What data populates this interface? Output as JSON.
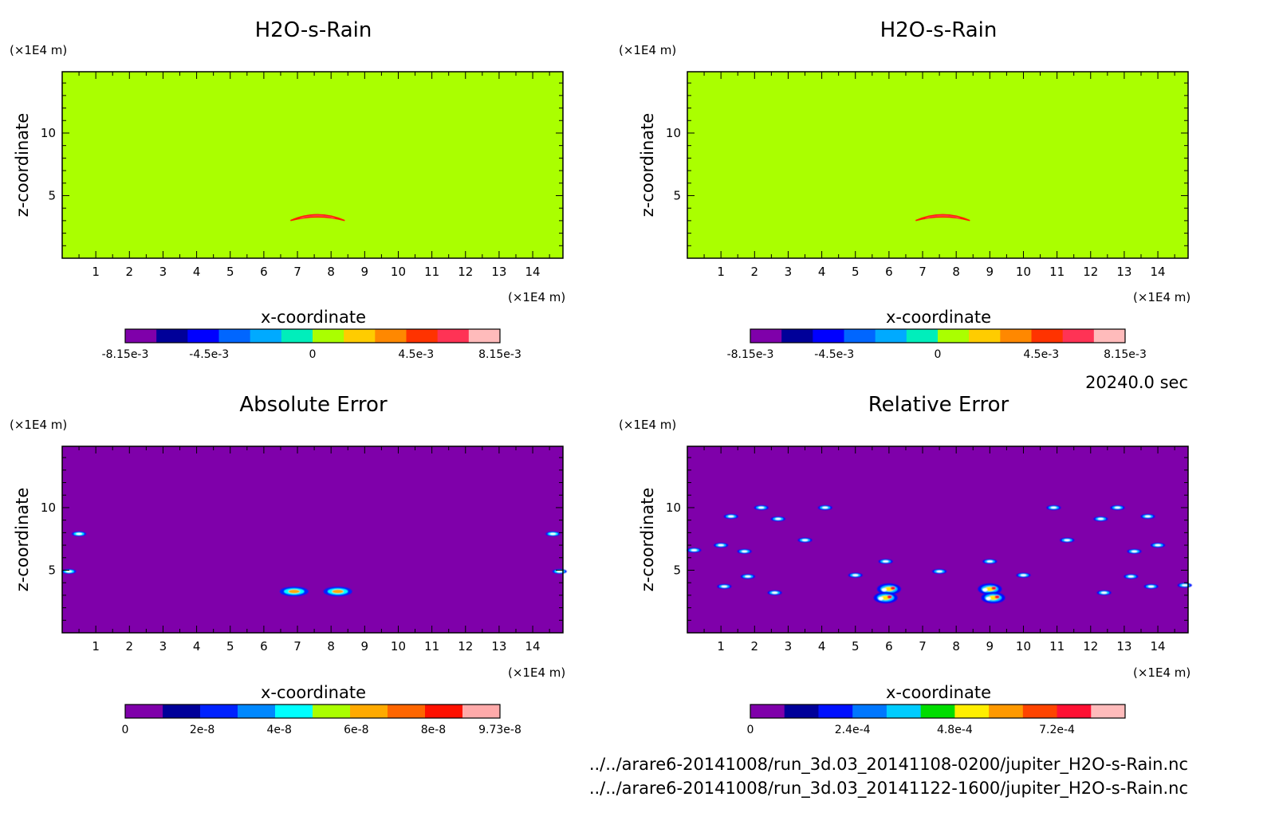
{
  "figure": {
    "time_label": "20240.0 sec",
    "file_paths": [
      "../../arare6-20141008/run_3d.03_20141108-0200/jupiter_H2O-s-Rain.nc",
      "../../arare6-20141008/run_3d.03_20141122-1600/jupiter_H2O-s-Rain.nc"
    ]
  },
  "colors": {
    "background_field": "#aaff00",
    "error_background": "#7f00aa",
    "levels_diverging": [
      "#7f00aa",
      "#000099",
      "#0000ff",
      "#0066ff",
      "#00aaff",
      "#00eebb",
      "#aaff00",
      "#ffcc00",
      "#ff8800",
      "#ff3300",
      "#ff3355",
      "#ffbbbb"
    ],
    "levels_sequential": [
      "#7f00aa",
      "#000099",
      "#0022ff",
      "#0088ff",
      "#00ffff",
      "#aaff00",
      "#ffaa00",
      "#ff6600",
      "#ff1100",
      "#ffaaaa"
    ],
    "levels_relative": [
      "#7f00aa",
      "#000099",
      "#0011ff",
      "#0077ff",
      "#00ccff",
      "#00dd00",
      "#ffee00",
      "#ff9900",
      "#ff4400",
      "#ff1133",
      "#ffbbbb"
    ]
  },
  "chart_data": [
    {
      "type": "heatmap",
      "title": "H2O-s-Rain",
      "xlabel": "x-coordinate",
      "ylabel": "z-coordinate",
      "x_unit": "(×1E4 m)",
      "y_unit": "(×1E4 m)",
      "xlim": [
        0,
        14.9
      ],
      "ylim": [
        0,
        14.9
      ],
      "x_ticks": [
        "1",
        "2",
        "3",
        "4",
        "5",
        "6",
        "7",
        "8",
        "9",
        "10",
        "11",
        "12",
        "13",
        "14"
      ],
      "y_ticks": [
        "5",
        "10"
      ],
      "colorbar_ticks": [
        "-8.15e-3",
        "-4.5e-3",
        "0",
        "4.5e-3",
        "8.15e-3"
      ],
      "colorbar_tick_values": [
        -0.00815,
        -0.0045,
        0,
        0.0045,
        0.00815
      ],
      "colorbar_range": [
        -0.00815,
        0.00815
      ],
      "background_value": 0,
      "features": [
        {
          "x": 7.6,
          "z": 3.2,
          "description": "thin positive arc"
        }
      ]
    },
    {
      "type": "heatmap",
      "title": "H2O-s-Rain",
      "xlabel": "x-coordinate",
      "ylabel": "z-coordinate",
      "x_unit": "(×1E4 m)",
      "y_unit": "(×1E4 m)",
      "xlim": [
        0,
        14.9
      ],
      "ylim": [
        0,
        14.9
      ],
      "x_ticks": [
        "1",
        "2",
        "3",
        "4",
        "5",
        "6",
        "7",
        "8",
        "9",
        "10",
        "11",
        "12",
        "13",
        "14"
      ],
      "y_ticks": [
        "5",
        "10"
      ],
      "colorbar_ticks": [
        "-8.15e-3",
        "-4.5e-3",
        "0",
        "4.5e-3",
        "8.15e-3"
      ],
      "colorbar_tick_values": [
        -0.00815,
        -0.0045,
        0,
        0.0045,
        0.00815
      ],
      "colorbar_range": [
        -0.00815,
        0.00815
      ],
      "background_value": 0,
      "features": [
        {
          "x": 7.6,
          "z": 3.2,
          "description": "thin positive arc"
        }
      ]
    },
    {
      "type": "heatmap",
      "title": "Absolute Error",
      "xlabel": "x-coordinate",
      "ylabel": "z-coordinate",
      "x_unit": "(×1E4 m)",
      "y_unit": "(×1E4 m)",
      "xlim": [
        0,
        14.9
      ],
      "ylim": [
        0,
        14.9
      ],
      "x_ticks": [
        "1",
        "2",
        "3",
        "4",
        "5",
        "6",
        "7",
        "8",
        "9",
        "10",
        "11",
        "12",
        "13",
        "14"
      ],
      "y_ticks": [
        "5",
        "10"
      ],
      "colorbar_ticks": [
        "0",
        "2e-8",
        "4e-8",
        "6e-8",
        "8e-8",
        "9.73e-8"
      ],
      "colorbar_tick_values": [
        0,
        2e-08,
        4e-08,
        6e-08,
        8e-08,
        9.73e-08
      ],
      "colorbar_range": [
        0,
        9.73e-08
      ],
      "blobs": [
        {
          "x": 6.9,
          "z": 3.3
        },
        {
          "x": 8.2,
          "z": 3.3
        },
        {
          "x": 0.2,
          "z": 4.9
        },
        {
          "x": 14.8,
          "z": 4.9
        },
        {
          "x": 0.5,
          "z": 7.9
        },
        {
          "x": 14.6,
          "z": 7.9
        }
      ]
    },
    {
      "type": "heatmap",
      "title": "Relative Error",
      "xlabel": "x-coordinate",
      "ylabel": "z-coordinate",
      "x_unit": "(×1E4 m)",
      "y_unit": "(×1E4 m)",
      "xlim": [
        0,
        14.9
      ],
      "ylim": [
        0,
        14.9
      ],
      "x_ticks": [
        "1",
        "2",
        "3",
        "4",
        "5",
        "6",
        "7",
        "8",
        "9",
        "10",
        "11",
        "12",
        "13",
        "14"
      ],
      "y_ticks": [
        "5",
        "10"
      ],
      "colorbar_ticks": [
        "0",
        "2.4e-4",
        "4.8e-4",
        "7.2e-4"
      ],
      "colorbar_tick_values": [
        0,
        0.00024,
        0.00048,
        0.00072
      ],
      "colorbar_range": [
        0,
        0.00088
      ],
      "blobs": [
        {
          "x": 6.0,
          "z": 3.5
        },
        {
          "x": 9.0,
          "z": 3.5
        },
        {
          "x": 5.9,
          "z": 2.8
        },
        {
          "x": 9.1,
          "z": 2.8
        },
        {
          "x": 5.0,
          "z": 4.6
        },
        {
          "x": 10.0,
          "z": 4.6
        },
        {
          "x": 5.9,
          "z": 5.7
        },
        {
          "x": 9.0,
          "z": 5.7
        },
        {
          "x": 1.8,
          "z": 4.5
        },
        {
          "x": 13.2,
          "z": 4.5
        },
        {
          "x": 1.1,
          "z": 3.7
        },
        {
          "x": 13.8,
          "z": 3.7
        },
        {
          "x": 2.6,
          "z": 3.2
        },
        {
          "x": 12.4,
          "z": 3.2
        },
        {
          "x": 1.7,
          "z": 6.5
        },
        {
          "x": 13.3,
          "z": 6.5
        },
        {
          "x": 1.3,
          "z": 9.3
        },
        {
          "x": 13.7,
          "z": 9.3
        },
        {
          "x": 2.7,
          "z": 9.1
        },
        {
          "x": 12.3,
          "z": 9.1
        },
        {
          "x": 2.2,
          "z": 10.0
        },
        {
          "x": 12.8,
          "z": 10.0
        },
        {
          "x": 4.1,
          "z": 10.0
        },
        {
          "x": 10.9,
          "z": 10.0
        },
        {
          "x": 3.5,
          "z": 7.4
        },
        {
          "x": 11.3,
          "z": 7.4
        },
        {
          "x": 1.0,
          "z": 7.0
        },
        {
          "x": 14.0,
          "z": 7.0
        },
        {
          "x": 7.5,
          "z": 4.9
        },
        {
          "x": 0.2,
          "z": 6.6
        },
        {
          "x": 14.8,
          "z": 3.8
        }
      ]
    }
  ]
}
